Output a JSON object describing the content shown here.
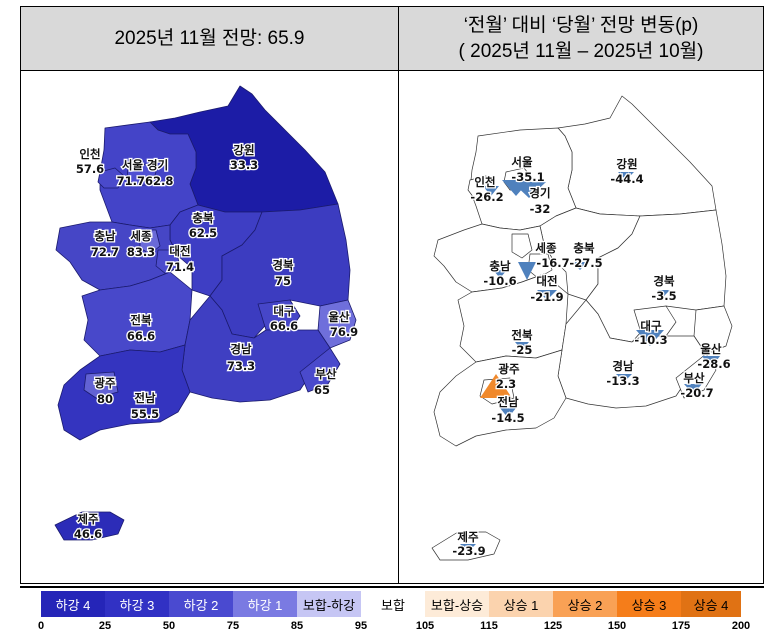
{
  "left_panel": {
    "title": "2025년 11월 전망: 65.9"
  },
  "right_panel": {
    "title_line1": "‘전월’ 대비 ‘당월’ 전망 변동(p)",
    "title_line2": "( 2025년 11월 –  2025년 10월)"
  },
  "left_labels": [
    {
      "name": "인천",
      "value": "57.6"
    },
    {
      "name": "서울 경기",
      "value": "71.762.8"
    },
    {
      "name": "강원",
      "value": "33.3"
    },
    {
      "name": "충북",
      "value": "62.5"
    },
    {
      "name": "충남",
      "value": "72.7"
    },
    {
      "name": "세종",
      "value": "83.3"
    },
    {
      "name": "대전",
      "value": "71.4"
    },
    {
      "name": "경북",
      "value": "75"
    },
    {
      "name": "대구",
      "value": "66.6"
    },
    {
      "name": "울산",
      "value": "76.9"
    },
    {
      "name": "전북",
      "value": "66.6"
    },
    {
      "name": "경남",
      "value": "73.3"
    },
    {
      "name": "부산",
      "value": "65"
    },
    {
      "name": "광주",
      "value": "80"
    },
    {
      "name": "전남",
      "value": "55.5"
    },
    {
      "name": "제주",
      "value": "46.6"
    }
  ],
  "right_labels": [
    {
      "name": "서울",
      "value": "-35.1"
    },
    {
      "name": "인천",
      "value": "-26.2"
    },
    {
      "name": "경기",
      "value": "-32"
    },
    {
      "name": "강원",
      "value": "-44.4"
    },
    {
      "name": "세종",
      "value": "-16.7"
    },
    {
      "name": "충북",
      "value": "-27.5"
    },
    {
      "name": "충남",
      "value": "-10.6"
    },
    {
      "name": "대전",
      "value": "-21.9"
    },
    {
      "name": "경북",
      "value": "-3.5"
    },
    {
      "name": "대구",
      "value": "-10.3"
    },
    {
      "name": "전북",
      "value": "-25"
    },
    {
      "name": "광주",
      "value": "2.3"
    },
    {
      "name": "경남",
      "value": "-13.3"
    },
    {
      "name": "울산",
      "value": "-28.6"
    },
    {
      "name": "전남",
      "value": "-14.5"
    },
    {
      "name": "부산",
      "value": "-20.7"
    },
    {
      "name": "제주",
      "value": "-23.9"
    }
  ],
  "legend": {
    "items": [
      {
        "label": "하강 4",
        "color": "#2525b8",
        "text_color": "#ffffff"
      },
      {
        "label": "하강 3",
        "color": "#3131c4",
        "text_color": "#ffffff"
      },
      {
        "label": "하강 2",
        "color": "#4a4ad0",
        "text_color": "#ffffff"
      },
      {
        "label": "하강 1",
        "color": "#7a7ae2",
        "text_color": "#ffffff"
      },
      {
        "label": "보합-하강",
        "color": "#c6c6f4",
        "text_color": "#000000"
      },
      {
        "label": "보합",
        "color": "#ffffff",
        "text_color": "#000000"
      },
      {
        "label": "보합-상승",
        "color": "#fdebd8",
        "text_color": "#000000"
      },
      {
        "label": "상승 1",
        "color": "#fbd3ae",
        "text_color": "#000000"
      },
      {
        "label": "상승 2",
        "color": "#f9a155",
        "text_color": "#000000"
      },
      {
        "label": "상승 3",
        "color": "#f57d1a",
        "text_color": "#000000"
      },
      {
        "label": "상승 4",
        "color": "#e07214",
        "text_color": "#000000"
      }
    ],
    "ticks": [
      "0",
      "25",
      "50",
      "75",
      "85",
      "95",
      "105",
      "115",
      "125",
      "150",
      "175",
      "200"
    ]
  },
  "colors": {
    "fall_4": "#2525b8",
    "fall_3": "#3131c4",
    "fall_2": "#4a4ad0",
    "fall_1": "#7a7ae2",
    "flat_fall": "#c6c6f4",
    "header_bg": "#d9d9d9",
    "gangwon": "#1c1ca6",
    "arrow_down": "#4f81bd",
    "arrow_up": "#f0892c"
  }
}
